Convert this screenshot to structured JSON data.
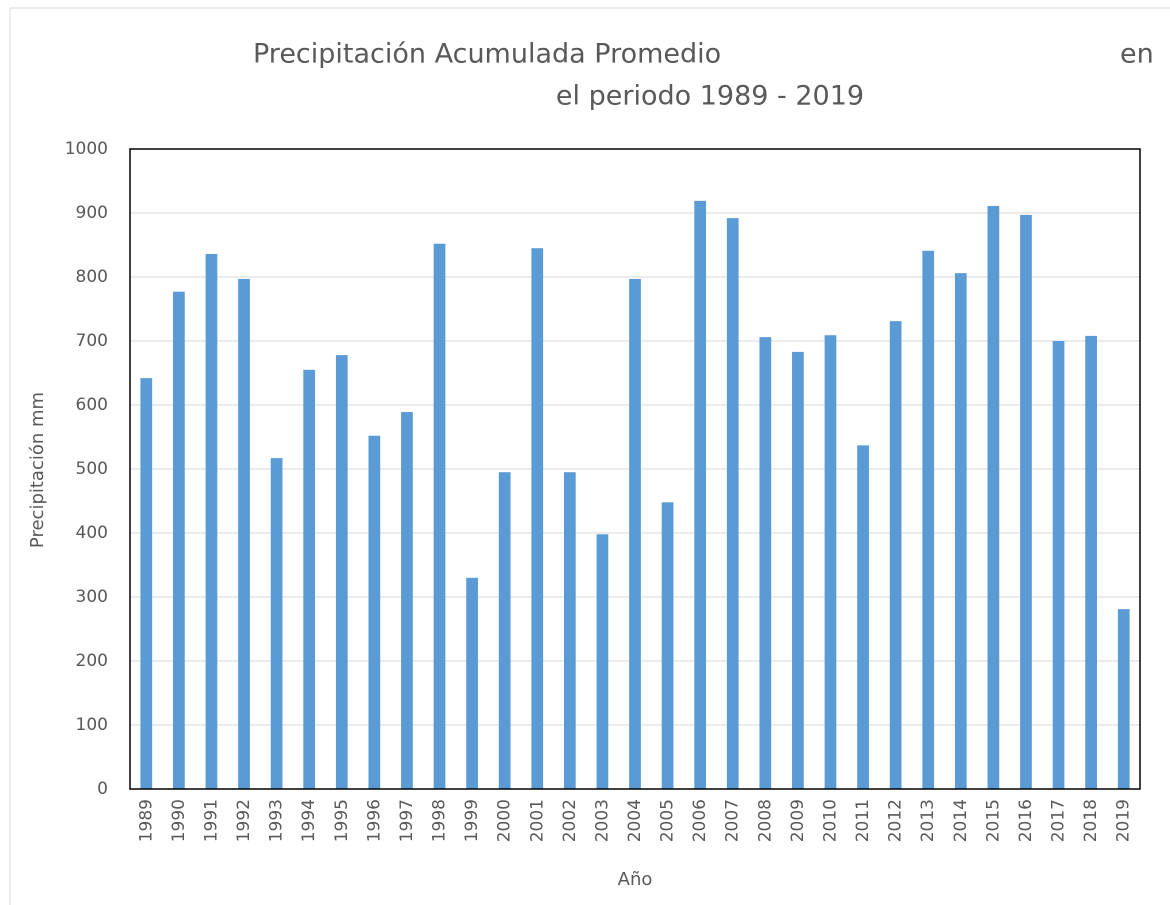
{
  "chart_data": {
    "type": "bar",
    "title": [
      "Precipitación Acumulada Promedio",
      "en",
      "el periodo 1989 - 2019"
    ],
    "x_label": "Año",
    "y_label": "Precipitación mm",
    "categories": [
      "1989",
      "1990",
      "1991",
      "1992",
      "1993",
      "1994",
      "1995",
      "1996",
      "1997",
      "1998",
      "1999",
      "2000",
      "2001",
      "2002",
      "2003",
      "2004",
      "2005",
      "2006",
      "2007",
      "2008",
      "2009",
      "2010",
      "2011",
      "2012",
      "2013",
      "2014",
      "2015",
      "2016",
      "2017",
      "2018",
      "2019"
    ],
    "values": [
      642,
      777,
      836,
      797,
      517,
      655,
      678,
      552,
      589,
      852,
      330,
      495,
      845,
      495,
      398,
      797,
      448,
      919,
      892,
      706,
      683,
      709,
      537,
      731,
      841,
      806,
      911,
      897,
      700,
      708,
      281
    ],
    "color": "#5b9bd5",
    "ylim": [
      0,
      1000
    ],
    "yticks": [
      0,
      100,
      200,
      300,
      400,
      500,
      600,
      700,
      800,
      900,
      1000
    ],
    "grid": true
  }
}
